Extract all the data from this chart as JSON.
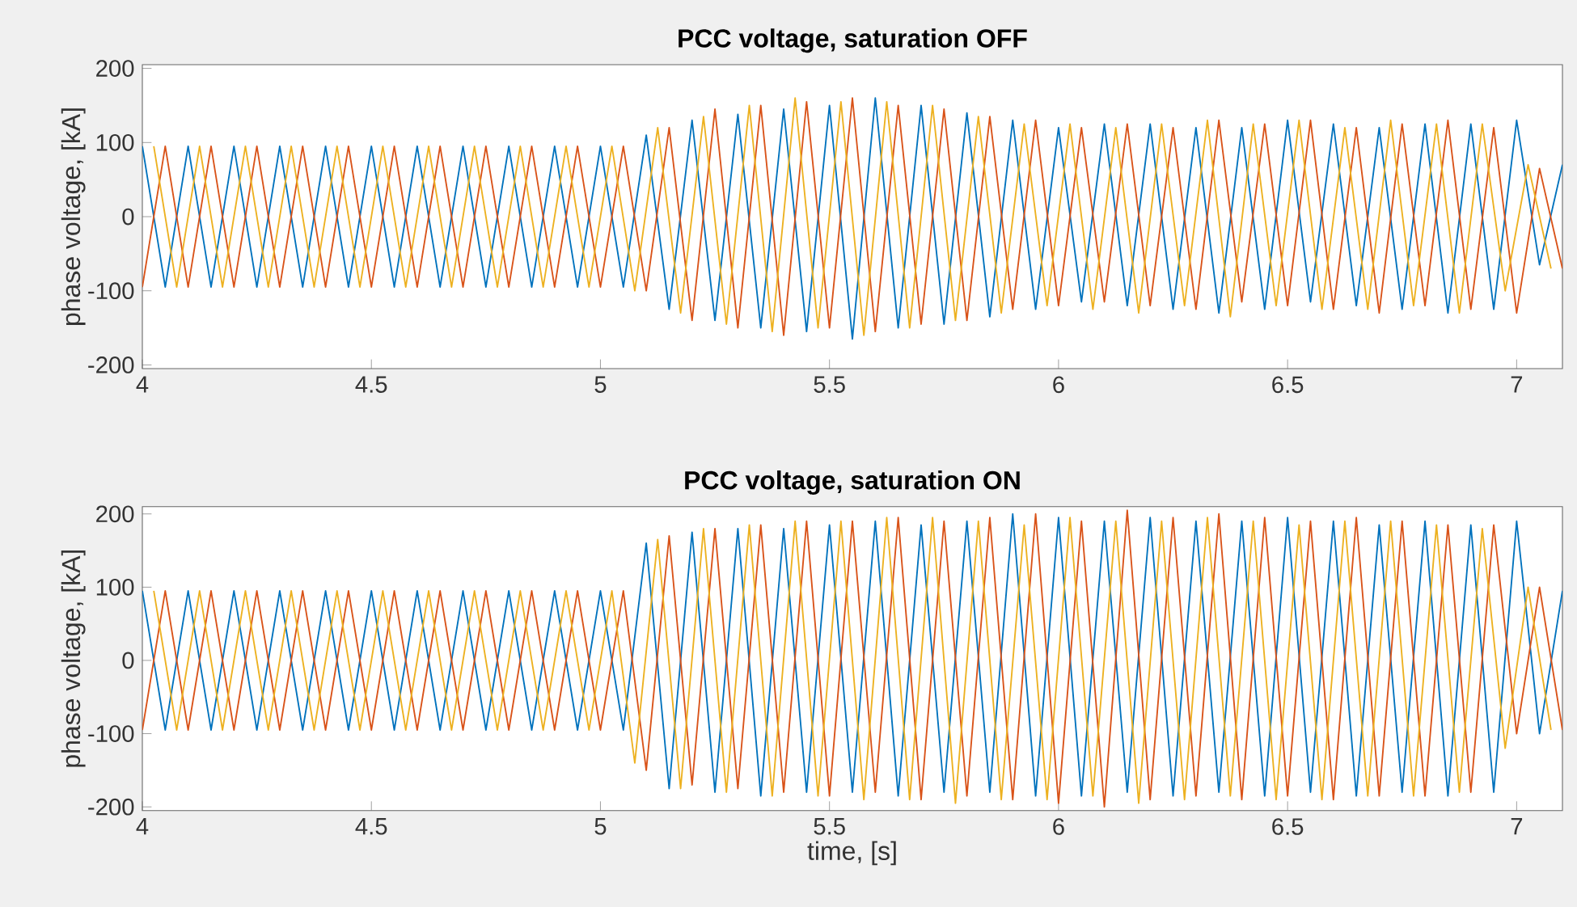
{
  "chart_data": [
    {
      "type": "line",
      "title": "PCC voltage, saturation OFF",
      "ylabel": "phase voltage, [kA]",
      "x": [
        4,
        4.05,
        4.1,
        4.15,
        4.2,
        4.25,
        4.3,
        4.35,
        4.4,
        4.45,
        4.5,
        4.55,
        4.6,
        4.65,
        4.7,
        4.75,
        4.8,
        4.85,
        4.9,
        4.95,
        5,
        5.05,
        5.1,
        5.15,
        5.2,
        5.25,
        5.3,
        5.35,
        5.4,
        5.45,
        5.5,
        5.55,
        5.6,
        5.65,
        5.7,
        5.75,
        5.8,
        5.85,
        5.9,
        5.95,
        6,
        6.05,
        6.1,
        6.15,
        6.2,
        6.25,
        6.3,
        6.35,
        6.4,
        6.45,
        6.5,
        6.55,
        6.6,
        6.65,
        6.7,
        6.75,
        6.8,
        6.85,
        6.9,
        6.95,
        7,
        7.05,
        7.1
      ],
      "series": [
        {
          "color": "#0072bd",
          "values": [
            95,
            -95,
            95,
            -95,
            95,
            -95,
            95,
            -95,
            95,
            -95,
            95,
            -95,
            95,
            -95,
            95,
            -95,
            95,
            -95,
            95,
            -95,
            95,
            -95,
            110,
            -125,
            130,
            -140,
            138,
            -150,
            145,
            -155,
            150,
            -165,
            160,
            -150,
            150,
            -145,
            140,
            -135,
            130,
            -125,
            120,
            -115,
            125,
            -120,
            125,
            -125,
            120,
            -130,
            120,
            -125,
            130,
            -115,
            125,
            -120,
            120,
            -125,
            125,
            -130,
            125,
            -125,
            130,
            -65,
            70
          ]
        },
        {
          "color": "#d95319",
          "values": [
            -95,
            95,
            -95,
            95,
            -95,
            95,
            -95,
            95,
            -95,
            95,
            -95,
            95,
            -95,
            95,
            -95,
            95,
            -95,
            95,
            -95,
            95,
            -95,
            95,
            -100,
            120,
            -140,
            145,
            -150,
            150,
            -160,
            155,
            -150,
            160,
            -155,
            150,
            -145,
            145,
            -140,
            135,
            -125,
            130,
            -120,
            120,
            -115,
            125,
            -120,
            120,
            -125,
            130,
            -115,
            125,
            -120,
            130,
            -125,
            120,
            -130,
            125,
            -120,
            130,
            -125,
            120,
            -130,
            65,
            -70
          ]
        },
        {
          "color": "#edb120",
          "x": [
            4.025,
            4.075,
            4.125,
            4.175,
            4.225,
            4.275,
            4.325,
            4.375,
            4.425,
            4.475,
            4.525,
            4.575,
            4.625,
            4.675,
            4.725,
            4.775,
            4.825,
            4.875,
            4.925,
            4.975,
            5.025,
            5.075,
            5.125,
            5.175,
            5.225,
            5.275,
            5.325,
            5.375,
            5.425,
            5.475,
            5.525,
            5.575,
            5.625,
            5.675,
            5.725,
            5.775,
            5.825,
            5.875,
            5.925,
            5.975,
            6.025,
            6.075,
            6.125,
            6.175,
            6.225,
            6.275,
            6.325,
            6.375,
            6.425,
            6.475,
            6.525,
            6.575,
            6.625,
            6.675,
            6.725,
            6.775,
            6.825,
            6.875,
            6.925,
            6.975,
            7.025,
            7.075
          ],
          "values": [
            95,
            -95,
            95,
            -95,
            95,
            -95,
            95,
            -95,
            95,
            -95,
            95,
            -95,
            95,
            -95,
            95,
            -95,
            95,
            -95,
            95,
            -95,
            95,
            -100,
            120,
            -130,
            135,
            -145,
            150,
            -155,
            160,
            -150,
            155,
            -160,
            155,
            -150,
            150,
            -140,
            135,
            -130,
            125,
            -120,
            125,
            -125,
            120,
            -130,
            125,
            -120,
            130,
            -135,
            125,
            -120,
            130,
            -125,
            120,
            -125,
            130,
            -120,
            125,
            -130,
            125,
            -100,
            70,
            -70
          ]
        }
      ],
      "xlim": [
        4,
        7.1
      ],
      "ylim": [
        -205,
        205
      ],
      "xticks": [
        4,
        4.5,
        5,
        5.5,
        6,
        6.5,
        7
      ],
      "yticks": [
        -200,
        -100,
        0,
        100,
        200
      ]
    },
    {
      "type": "line",
      "title": "PCC voltage, saturation ON",
      "ylabel": "phase voltage, [kA]",
      "xlabel": "time, [s]",
      "x": [
        4,
        4.05,
        4.1,
        4.15,
        4.2,
        4.25,
        4.3,
        4.35,
        4.4,
        4.45,
        4.5,
        4.55,
        4.6,
        4.65,
        4.7,
        4.75,
        4.8,
        4.85,
        4.9,
        4.95,
        5,
        5.05,
        5.1,
        5.15,
        5.2,
        5.25,
        5.3,
        5.35,
        5.4,
        5.45,
        5.5,
        5.55,
        5.6,
        5.65,
        5.7,
        5.75,
        5.8,
        5.85,
        5.9,
        5.95,
        6,
        6.05,
        6.1,
        6.15,
        6.2,
        6.25,
        6.3,
        6.35,
        6.4,
        6.45,
        6.5,
        6.55,
        6.6,
        6.65,
        6.7,
        6.75,
        6.8,
        6.85,
        6.9,
        6.95,
        7,
        7.05,
        7.1
      ],
      "series": [
        {
          "color": "#0072bd",
          "values": [
            95,
            -95,
            95,
            -95,
            95,
            -95,
            95,
            -95,
            95,
            -95,
            95,
            -95,
            95,
            -95,
            95,
            -95,
            95,
            -95,
            95,
            -95,
            95,
            -95,
            160,
            -175,
            175,
            -180,
            180,
            -185,
            180,
            -180,
            185,
            -180,
            190,
            -185,
            185,
            -180,
            190,
            -180,
            200,
            -185,
            195,
            -185,
            190,
            -180,
            195,
            -185,
            190,
            -180,
            190,
            -185,
            195,
            -180,
            190,
            -185,
            185,
            -180,
            190,
            -185,
            185,
            -180,
            190,
            -100,
            95
          ]
        },
        {
          "color": "#d95319",
          "values": [
            -95,
            95,
            -95,
            95,
            -95,
            95,
            -95,
            95,
            -95,
            95,
            -95,
            95,
            -95,
            95,
            -95,
            95,
            -95,
            95,
            -95,
            95,
            -95,
            95,
            -150,
            170,
            -170,
            180,
            -175,
            185,
            -180,
            190,
            -185,
            190,
            -180,
            195,
            -190,
            190,
            -185,
            195,
            -190,
            200,
            -195,
            190,
            -200,
            205,
            -190,
            195,
            -185,
            200,
            -190,
            195,
            -185,
            190,
            -190,
            195,
            -185,
            190,
            -185,
            185,
            -180,
            185,
            -100,
            100,
            -95
          ]
        },
        {
          "color": "#edb120",
          "x": [
            4.025,
            4.075,
            4.125,
            4.175,
            4.225,
            4.275,
            4.325,
            4.375,
            4.425,
            4.475,
            4.525,
            4.575,
            4.625,
            4.675,
            4.725,
            4.775,
            4.825,
            4.875,
            4.925,
            4.975,
            5.025,
            5.075,
            5.125,
            5.175,
            5.225,
            5.275,
            5.325,
            5.375,
            5.425,
            5.475,
            5.525,
            5.575,
            5.625,
            5.675,
            5.725,
            5.775,
            5.825,
            5.875,
            5.925,
            5.975,
            6.025,
            6.075,
            6.125,
            6.175,
            6.225,
            6.275,
            6.325,
            6.375,
            6.425,
            6.475,
            6.525,
            6.575,
            6.625,
            6.675,
            6.725,
            6.775,
            6.825,
            6.875,
            6.925,
            6.975,
            7.025,
            7.075
          ],
          "values": [
            95,
            -95,
            95,
            -95,
            95,
            -95,
            95,
            -95,
            95,
            -95,
            95,
            -95,
            95,
            -95,
            95,
            -95,
            95,
            -95,
            95,
            -95,
            95,
            -140,
            165,
            -175,
            180,
            -180,
            185,
            -185,
            190,
            -185,
            190,
            -190,
            195,
            -190,
            195,
            -195,
            190,
            -190,
            185,
            -190,
            195,
            -185,
            190,
            -195,
            190,
            -190,
            195,
            -185,
            190,
            -190,
            185,
            -190,
            190,
            -185,
            190,
            -185,
            185,
            -180,
            180,
            -120,
            100,
            -95
          ]
        }
      ],
      "xlim": [
        4,
        7.1
      ],
      "ylim": [
        -205,
        210
      ],
      "xticks": [
        4,
        4.5,
        5,
        5.5,
        6,
        6.5,
        7
      ],
      "yticks": [
        -200,
        -100,
        0,
        100,
        200
      ]
    }
  ]
}
